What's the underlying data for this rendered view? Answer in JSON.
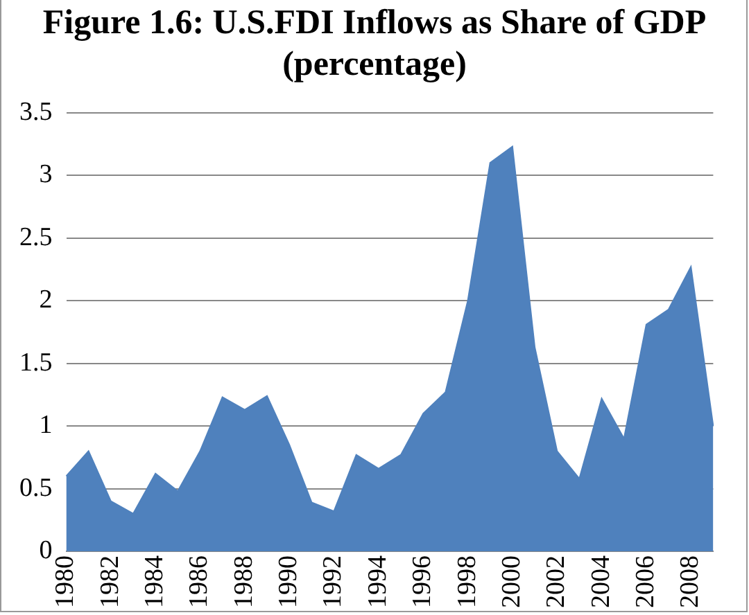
{
  "chart_data": {
    "type": "area",
    "title": "Figure 1.6: U.S.FDI Inflows as Share of GDP (percentage)",
    "categories": [
      "1980",
      null,
      "1982",
      null,
      "1984",
      null,
      "1986",
      null,
      "1988",
      null,
      "1990",
      null,
      "1992",
      null,
      "1994",
      null,
      "1996",
      null,
      "1998",
      null,
      "2000",
      null,
      "2002",
      null,
      "2004",
      null,
      "2006",
      null,
      "2008",
      null
    ],
    "values": [
      0.6,
      0.8,
      0.4,
      0.3,
      0.62,
      0.48,
      0.8,
      1.23,
      1.13,
      1.24,
      0.85,
      0.39,
      0.32,
      0.77,
      0.66,
      0.77,
      1.1,
      1.27,
      2.0,
      3.1,
      3.23,
      1.63,
      0.8,
      0.58,
      1.22,
      0.9,
      1.81,
      1.93,
      2.27,
      1.0
    ],
    "color": "#4f81bd",
    "ylim": [
      0,
      3.5
    ],
    "yticks": [
      0,
      0.5,
      1,
      1.5,
      2,
      2.5,
      3,
      3.5
    ],
    "grid": "y"
  }
}
